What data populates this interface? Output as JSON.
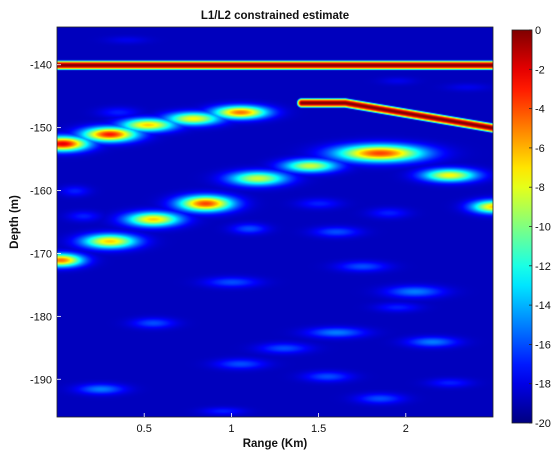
{
  "chart_data": {
    "type": "heatmap",
    "title": "L1/L2 constrained estimate",
    "xlabel": "Range (Km)",
    "ylabel": "Depth (m)",
    "xlim": [
      0,
      2.5
    ],
    "ylim": [
      -196,
      -134
    ],
    "x_ticks": [
      0.5,
      1,
      1.5,
      2
    ],
    "x_tick_labels": [
      "0.5",
      "1",
      "1.5",
      "2"
    ],
    "y_ticks": [
      -140,
      -150,
      -160,
      -170,
      -180,
      -190
    ],
    "y_tick_labels": [
      "-140",
      "-150",
      "-160",
      "-170",
      "-180",
      "-190"
    ],
    "colorbar": {
      "min": -20,
      "max": 0,
      "ticks": [
        0,
        -2,
        -4,
        -6,
        -8,
        -10,
        -12,
        -14,
        -16,
        -18,
        -20
      ],
      "tick_labels": [
        "0",
        "-2",
        "-4",
        "-6",
        "-8",
        "-10",
        "-12",
        "-14",
        "-16",
        "-18",
        "-20"
      ],
      "colormap": "jet"
    },
    "background_level_db": -20,
    "ridges": [
      {
        "x": [
          0,
          2.5
        ],
        "y": [
          -140,
          -140
        ],
        "peak_db": 0
      },
      {
        "x": [
          1.4,
          1.65,
          2.5
        ],
        "y": [
          -146,
          -146,
          -150
        ],
        "peak_db": 0
      }
    ],
    "blobs": [
      {
        "x": 0.03,
        "y": -152.5,
        "peak_db": -2,
        "wx": 0.14,
        "wy": 1.1
      },
      {
        "x": 0.3,
        "y": -151,
        "peak_db": -3,
        "wx": 0.15,
        "wy": 1.1
      },
      {
        "x": 0.52,
        "y": -149.5,
        "peak_db": -7,
        "wx": 0.15,
        "wy": 1.0
      },
      {
        "x": 0.78,
        "y": -148.5,
        "peak_db": -8,
        "wx": 0.15,
        "wy": 1.0
      },
      {
        "x": 1.05,
        "y": -147.5,
        "peak_db": -5,
        "wx": 0.15,
        "wy": 1.0
      },
      {
        "x": 1.85,
        "y": -154,
        "peak_db": -4,
        "wx": 0.24,
        "wy": 1.3
      },
      {
        "x": 2.25,
        "y": -157.5,
        "peak_db": -8,
        "wx": 0.15,
        "wy": 1.0
      },
      {
        "x": 2.5,
        "y": -162.5,
        "peak_db": -7,
        "wx": 0.12,
        "wy": 1.0
      },
      {
        "x": 1.45,
        "y": -156,
        "peak_db": -9,
        "wx": 0.15,
        "wy": 1.0
      },
      {
        "x": 1.15,
        "y": -158,
        "peak_db": -9,
        "wx": 0.16,
        "wy": 1.1
      },
      {
        "x": 0.85,
        "y": -162,
        "peak_db": -4,
        "wx": 0.15,
        "wy": 1.2
      },
      {
        "x": 0.55,
        "y": -164.5,
        "peak_db": -7,
        "wx": 0.15,
        "wy": 1.1
      },
      {
        "x": 0.3,
        "y": -168,
        "peak_db": -7,
        "wx": 0.15,
        "wy": 1.1
      },
      {
        "x": 0.02,
        "y": -171,
        "peak_db": -5,
        "wx": 0.12,
        "wy": 1.0
      },
      {
        "x": 0.1,
        "y": -160,
        "peak_db": -18,
        "wx": 0.08,
        "wy": 0.8
      },
      {
        "x": 0.15,
        "y": -164,
        "peak_db": -18,
        "wx": 0.09,
        "wy": 0.8
      },
      {
        "x": 0.35,
        "y": -147.5,
        "peak_db": -18,
        "wx": 0.11,
        "wy": 0.8
      },
      {
        "x": 1.5,
        "y": -162,
        "peak_db": -18,
        "wx": 0.12,
        "wy": 0.8
      },
      {
        "x": 1.6,
        "y": -166.5,
        "peak_db": -17,
        "wx": 0.13,
        "wy": 0.8
      },
      {
        "x": 1.75,
        "y": -172,
        "peak_db": -17,
        "wx": 0.14,
        "wy": 0.8
      },
      {
        "x": 1.1,
        "y": -166,
        "peak_db": -17,
        "wx": 0.1,
        "wy": 0.8
      },
      {
        "x": 1.0,
        "y": -174.5,
        "peak_db": -17,
        "wx": 0.15,
        "wy": 0.8
      },
      {
        "x": 2.05,
        "y": -176,
        "peak_db": -16,
        "wx": 0.16,
        "wy": 0.9
      },
      {
        "x": 1.9,
        "y": -163.5,
        "peak_db": -18,
        "wx": 0.11,
        "wy": 0.8
      },
      {
        "x": 0.55,
        "y": -181,
        "peak_db": -17,
        "wx": 0.12,
        "wy": 0.8
      },
      {
        "x": 1.6,
        "y": -182.5,
        "peak_db": -16,
        "wx": 0.16,
        "wy": 0.8
      },
      {
        "x": 2.15,
        "y": -184,
        "peak_db": -16,
        "wx": 0.14,
        "wy": 0.8
      },
      {
        "x": 1.95,
        "y": -178.5,
        "peak_db": -18,
        "wx": 0.12,
        "wy": 0.7
      },
      {
        "x": 1.3,
        "y": -185,
        "peak_db": -17,
        "wx": 0.14,
        "wy": 0.8
      },
      {
        "x": 1.05,
        "y": -187.5,
        "peak_db": -17,
        "wx": 0.14,
        "wy": 0.8
      },
      {
        "x": 1.55,
        "y": -189.5,
        "peak_db": -17,
        "wx": 0.13,
        "wy": 0.8
      },
      {
        "x": 0.25,
        "y": -191.5,
        "peak_db": -16,
        "wx": 0.13,
        "wy": 0.8
      },
      {
        "x": 1.85,
        "y": -193,
        "peak_db": -17,
        "wx": 0.13,
        "wy": 0.8
      },
      {
        "x": 0.4,
        "y": -136,
        "peak_db": -19,
        "wx": 0.12,
        "wy": 0.6
      },
      {
        "x": 2.35,
        "y": -143.5,
        "peak_db": -19,
        "wx": 0.12,
        "wy": 0.6
      },
      {
        "x": 1.95,
        "y": -142.5,
        "peak_db": -19,
        "wx": 0.1,
        "wy": 0.6
      },
      {
        "x": 2.25,
        "y": -190.5,
        "peak_db": -18,
        "wx": 0.12,
        "wy": 0.7
      },
      {
        "x": 0.95,
        "y": -195,
        "peak_db": -18,
        "wx": 0.12,
        "wy": 0.6
      }
    ]
  }
}
